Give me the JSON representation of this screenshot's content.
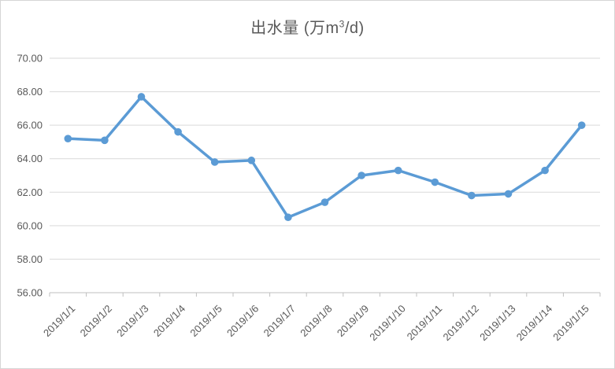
{
  "chart": {
    "title_prefix": "出水量 (万m",
    "title_sup": "3",
    "title_suffix": "/d)"
  },
  "chart_data": {
    "type": "line",
    "title": "出水量 (万m³/d)",
    "categories": [
      "2019/1/1",
      "2019/1/2",
      "2019/1/3",
      "2019/1/4",
      "2019/1/5",
      "2019/1/6",
      "2019/1/7",
      "2019/1/8",
      "2019/1/9",
      "2019/1/10",
      "2019/1/11",
      "2019/1/12",
      "2019/1/13",
      "2019/1/14",
      "2019/1/15"
    ],
    "values": [
      65.2,
      65.1,
      67.7,
      65.6,
      63.8,
      63.9,
      60.5,
      61.4,
      63.0,
      63.3,
      62.6,
      61.8,
      61.9,
      63.3,
      66.0
    ],
    "ylim": [
      56,
      70
    ],
    "ytick_step": 2,
    "ytick_labels": [
      "56.00",
      "58.00",
      "60.00",
      "62.00",
      "64.00",
      "66.00",
      "68.00",
      "70.00"
    ],
    "xlabel": "",
    "ylabel": "",
    "grid": true,
    "legend": false,
    "line_color": "#5b9bd5",
    "marker": "circle",
    "grid_color": "#d9d9d9",
    "axis_color": "#bfbfbf",
    "text_color": "#595959"
  }
}
